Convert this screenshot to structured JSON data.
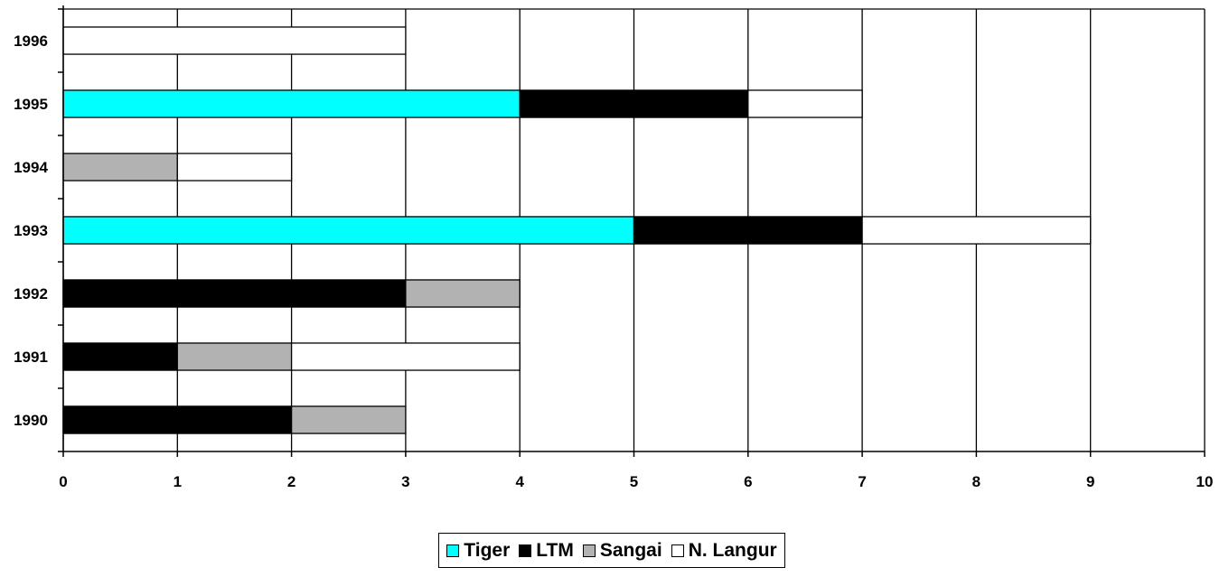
{
  "chart_data": {
    "type": "bar",
    "orientation": "horizontal",
    "stacked": true,
    "categories": [
      "1990",
      "1991",
      "1992",
      "1993",
      "1994",
      "1995",
      "1996"
    ],
    "series": [
      {
        "name": "Tiger",
        "color": "#00ffff",
        "values": [
          0,
          0,
          0,
          5,
          0,
          4,
          0
        ]
      },
      {
        "name": "LTM",
        "color": "#000000",
        "values": [
          2,
          1,
          3,
          2,
          0,
          2,
          0
        ]
      },
      {
        "name": "Sangai",
        "color": "#b2b2b2",
        "values": [
          1,
          1,
          1,
          0,
          1,
          0,
          0
        ]
      },
      {
        "name": "N. Langur",
        "color": "#ffffff",
        "values": [
          0,
          2,
          0,
          2,
          1,
          1,
          3
        ]
      }
    ],
    "xlim": [
      0,
      10
    ],
    "xticks": [
      "0",
      "1",
      "2",
      "3",
      "4",
      "5",
      "6",
      "7",
      "8",
      "9",
      "10"
    ],
    "grid": "vertical",
    "legend_position": "bottom"
  }
}
